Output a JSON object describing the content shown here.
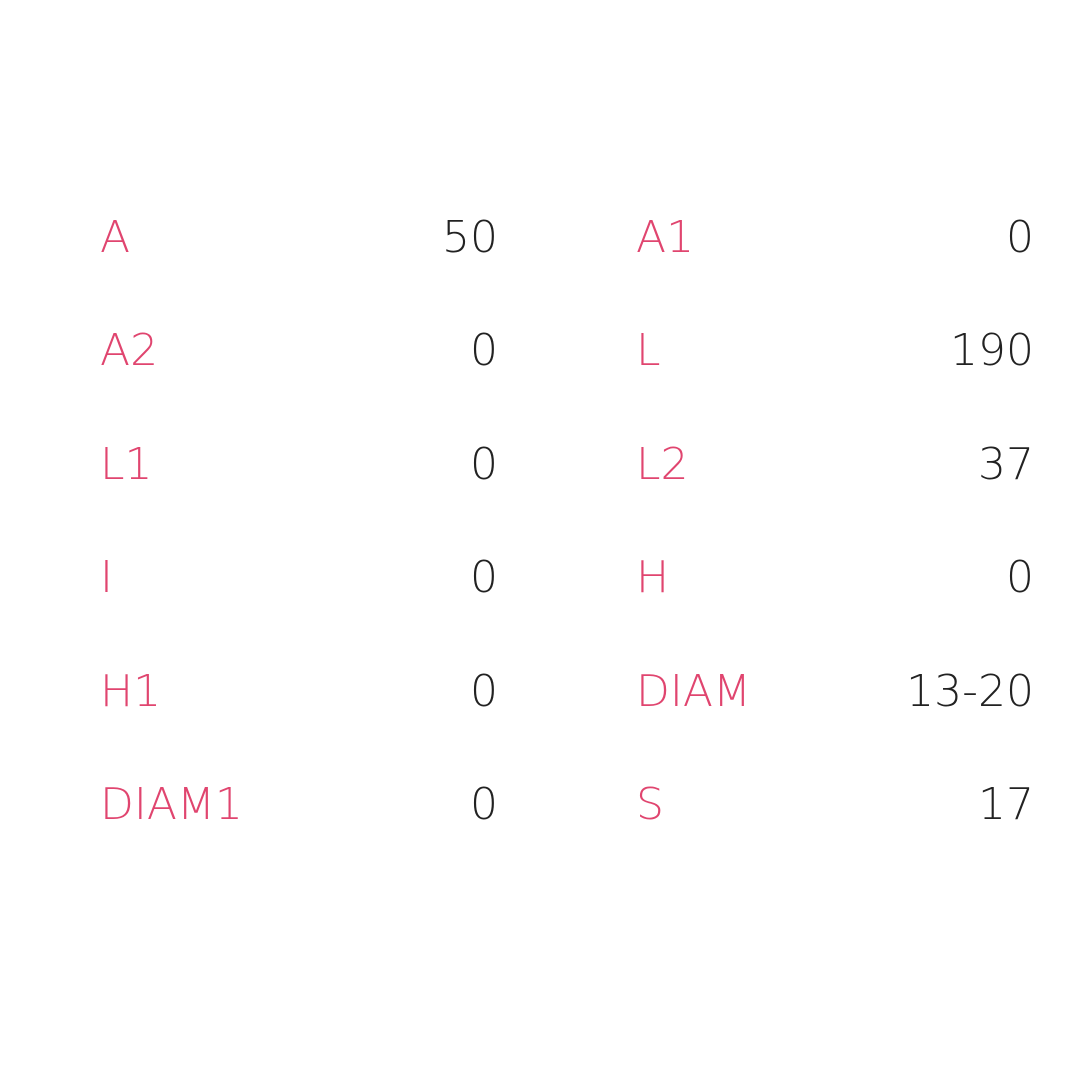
{
  "accent_color": "#e0456f",
  "specs": [
    {
      "label": "A",
      "value": "50"
    },
    {
      "label": "A1",
      "value": "0"
    },
    {
      "label": "A2",
      "value": "0"
    },
    {
      "label": "L",
      "value": "190"
    },
    {
      "label": "L1",
      "value": "0"
    },
    {
      "label": "L2",
      "value": "37"
    },
    {
      "label": "I",
      "value": "0"
    },
    {
      "label": "H",
      "value": "0"
    },
    {
      "label": "H1",
      "value": "0"
    },
    {
      "label": "DIAM",
      "value": "13-20"
    },
    {
      "label": "DIAM1",
      "value": "0"
    },
    {
      "label": "S",
      "value": "17"
    }
  ]
}
